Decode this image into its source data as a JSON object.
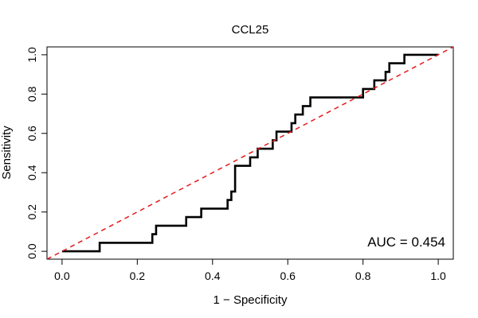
{
  "chart_data": {
    "type": "line",
    "title": "CCL25",
    "xlabel": "1 − Specificity",
    "ylabel": "Sensitivity",
    "xlim": [
      -0.04,
      1.04
    ],
    "ylim": [
      -0.04,
      1.04
    ],
    "x_ticks": [
      0.0,
      0.2,
      0.4,
      0.6,
      0.8,
      1.0
    ],
    "x_tick_labels": [
      "0.0",
      "0.2",
      "0.4",
      "0.6",
      "0.8",
      "1.0"
    ],
    "y_ticks": [
      0.0,
      0.2,
      0.4,
      0.6,
      0.8,
      1.0
    ],
    "y_tick_labels": [
      "0.0",
      "0.2",
      "0.4",
      "0.6",
      "0.8",
      "1.0"
    ],
    "annotation": "AUC = 0.454",
    "grid": false,
    "legend": "none",
    "series": [
      {
        "line_style": "solid",
        "color": "#000000",
        "x": [
          0.0,
          0.1,
          0.1,
          0.24,
          0.24,
          0.25,
          0.25,
          0.33,
          0.33,
          0.37,
          0.37,
          0.44,
          0.44,
          0.45,
          0.45,
          0.46,
          0.46,
          0.5,
          0.5,
          0.52,
          0.52,
          0.56,
          0.56,
          0.57,
          0.57,
          0.61,
          0.61,
          0.62,
          0.62,
          0.64,
          0.64,
          0.66,
          0.66,
          0.8,
          0.8,
          0.83,
          0.83,
          0.86,
          0.86,
          0.87,
          0.87,
          0.91,
          0.91,
          1.0
        ],
        "y": [
          0.0,
          0.0,
          0.043,
          0.043,
          0.087,
          0.087,
          0.13,
          0.13,
          0.174,
          0.174,
          0.217,
          0.217,
          0.261,
          0.261,
          0.304,
          0.304,
          0.435,
          0.435,
          0.478,
          0.478,
          0.522,
          0.522,
          0.565,
          0.565,
          0.609,
          0.609,
          0.652,
          0.652,
          0.696,
          0.696,
          0.739,
          0.739,
          0.783,
          0.783,
          0.826,
          0.826,
          0.87,
          0.87,
          0.913,
          0.913,
          0.957,
          0.957,
          1.0,
          1.0
        ]
      },
      {
        "line_style": "dashed",
        "color": "#e41a1c",
        "x": [
          -0.04,
          1.04
        ],
        "y": [
          -0.04,
          1.04
        ]
      }
    ]
  }
}
